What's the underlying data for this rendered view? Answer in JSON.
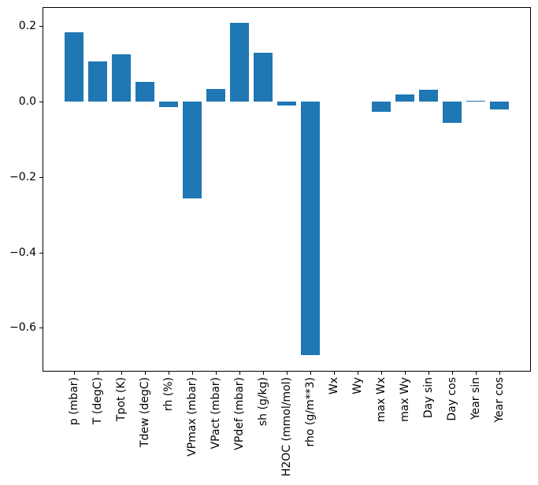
{
  "figure": {
    "background": "#ffffff",
    "axis_color": "#000000",
    "tick_label_color": "#000000"
  },
  "chart_data": {
    "type": "bar",
    "title": "",
    "xlabel": "",
    "ylabel": "",
    "grid": false,
    "legend": null,
    "bar_color": "#1f77b4",
    "categories": [
      "p (mbar)",
      "T (degC)",
      "Tpot (K)",
      "Tdew (degC)",
      "rh (%)",
      "VPmax (mbar)",
      "VPact (mbar)",
      "VPdef (mbar)",
      "sh (g/kg)",
      "H2OC (mmol/mol)",
      "rho (g/m**3)",
      "Wx",
      "Wy",
      "max Wx",
      "max Wy",
      "Day sin",
      "Day cos",
      "Year sin",
      "Year cos"
    ],
    "values": [
      0.184,
      0.106,
      0.125,
      0.052,
      -0.014,
      -0.256,
      0.033,
      0.208,
      0.129,
      -0.01,
      -0.671,
      0.0,
      0.0,
      -0.027,
      0.018,
      0.031,
      -0.056,
      0.002,
      -0.021
    ],
    "ylim": [
      -0.715,
      0.251
    ],
    "yticks": [
      0.2,
      0.0,
      -0.2,
      -0.4,
      -0.6
    ],
    "ytick_labels": [
      "0.2",
      "0.0",
      "−0.2",
      "−0.4",
      "−0.6"
    ],
    "xtick_rotation_deg": 90
  }
}
